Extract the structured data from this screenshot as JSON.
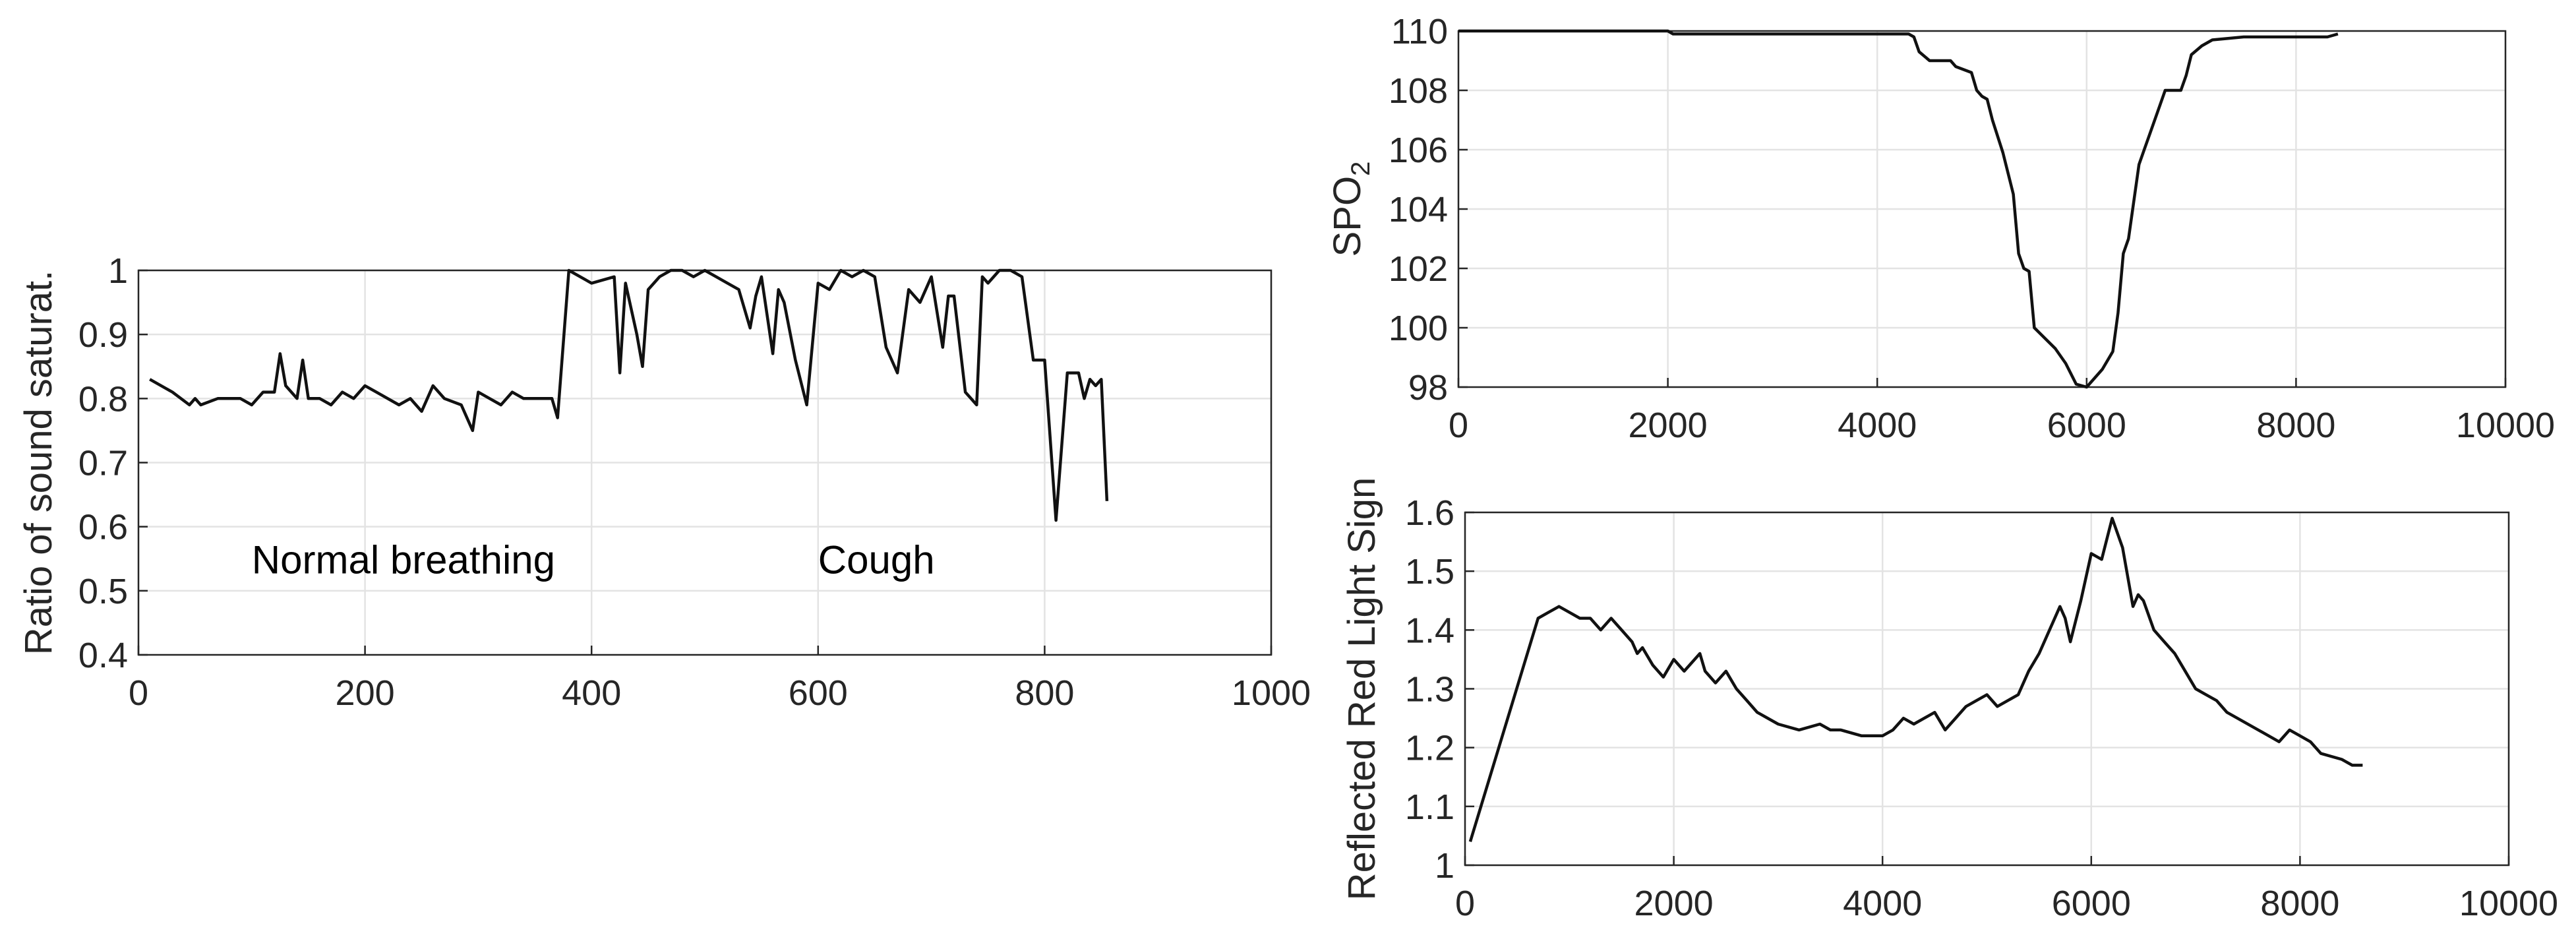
{
  "chart_data": [
    {
      "id": "left",
      "type": "line",
      "title": "",
      "xlabel": "",
      "ylabel": "Ratio of sound saturat.",
      "xlim": [
        0,
        1000
      ],
      "ylim": [
        0.4,
        1
      ],
      "grid": true,
      "xticks": [
        "0",
        "200",
        "400",
        "600",
        "800",
        "1000"
      ],
      "yticks": [
        "0.4",
        "0.5",
        "0.6",
        "0.7",
        "0.8",
        "0.9",
        "1"
      ],
      "annotations": [
        {
          "text": "Normal breathing",
          "x": 100,
          "y": 0.55
        },
        {
          "text": "Cough",
          "x": 600,
          "y": 0.55
        }
      ],
      "series": [
        {
          "x": [
            10,
            30,
            45,
            50,
            55,
            70,
            90,
            100,
            110,
            120,
            125,
            130,
            140,
            145,
            150,
            160,
            170,
            180,
            190,
            200,
            210,
            230,
            240,
            250,
            260,
            270,
            285,
            295,
            300,
            310,
            320,
            330,
            340,
            350,
            360,
            365,
            370,
            380,
            400,
            420,
            425,
            430,
            440,
            445,
            450,
            460,
            470,
            480,
            490,
            500,
            510,
            520,
            530,
            540,
            545,
            550,
            560,
            565,
            570,
            580,
            590,
            600,
            610,
            620,
            630,
            640,
            650,
            660,
            670,
            680,
            690,
            700,
            710,
            715,
            720,
            730,
            735,
            740,
            745,
            750,
            760,
            770,
            780,
            790,
            800,
            810,
            820,
            830,
            835,
            840,
            845,
            850,
            855,
            860,
            865,
            870
          ],
          "y": [
            0.83,
            0.81,
            0.79,
            0.8,
            0.79,
            0.8,
            0.8,
            0.79,
            0.81,
            0.81,
            0.87,
            0.82,
            0.8,
            0.86,
            0.8,
            0.8,
            0.79,
            0.81,
            0.8,
            0.82,
            0.81,
            0.79,
            0.8,
            0.78,
            0.82,
            0.8,
            0.79,
            0.75,
            0.81,
            0.8,
            0.79,
            0.81,
            0.8,
            0.8,
            0.8,
            0.8,
            0.77,
            1.0,
            0.98,
            0.99,
            0.84,
            0.98,
            0.9,
            0.85,
            0.97,
            0.99,
            1.0,
            1.0,
            0.99,
            1.0,
            0.99,
            0.98,
            0.97,
            0.91,
            0.96,
            0.99,
            0.87,
            0.97,
            0.95,
            0.86,
            0.79,
            0.98,
            0.97,
            1.0,
            0.99,
            1.0,
            0.99,
            0.88,
            0.84,
            0.97,
            0.95,
            0.99,
            0.88,
            0.96,
            0.96,
            0.81,
            0.8,
            0.79,
            0.99,
            0.98,
            1.0,
            1.0,
            0.99,
            0.86,
            0.86,
            0.61,
            0.84,
            0.84,
            0.8,
            0.83,
            0.82,
            0.83,
            0.64,
            null,
            null,
            null
          ]
        }
      ]
    },
    {
      "id": "top-right",
      "type": "line",
      "title": "",
      "xlabel": "",
      "ylabel": "SPO",
      "ylabel_sub": "2",
      "xlim": [
        0,
        10000
      ],
      "ylim": [
        98,
        110
      ],
      "grid": true,
      "xticks": [
        "0",
        "2000",
        "4000",
        "6000",
        "8000",
        "10000"
      ],
      "yticks": [
        "98",
        "100",
        "102",
        "104",
        "106",
        "108",
        "110"
      ],
      "series": [
        {
          "x": [
            0,
            2000,
            2050,
            4000,
            4300,
            4350,
            4400,
            4500,
            4700,
            4750,
            4900,
            4950,
            5000,
            5050,
            5100,
            5200,
            5300,
            5350,
            5400,
            5450,
            5500,
            5700,
            5800,
            5900,
            6000,
            6150,
            6250,
            6300,
            6350,
            6400,
            6500,
            6550,
            6600,
            6700,
            6750,
            6900,
            6950,
            7000,
            7100,
            7200,
            7500,
            8000,
            8300,
            8400
          ],
          "y": [
            110,
            110,
            109.9,
            109.9,
            109.9,
            109.8,
            109.3,
            109,
            109,
            108.8,
            108.6,
            108,
            107.8,
            107.7,
            107,
            105.9,
            104.5,
            102.5,
            102,
            101.9,
            100,
            99.3,
            98.8,
            98.1,
            98,
            98.6,
            99.2,
            100.5,
            102.5,
            103,
            105.5,
            106,
            106.5,
            107.5,
            108,
            108,
            108.5,
            109.2,
            109.5,
            109.7,
            109.8,
            109.8,
            109.8,
            109.9
          ]
        }
      ]
    },
    {
      "id": "bottom-right",
      "type": "line",
      "title": "",
      "xlabel": "",
      "ylabel": "Reflected Red Light Sign",
      "xlim": [
        0,
        10000
      ],
      "ylim": [
        1,
        1.6
      ],
      "grid": true,
      "xticks": [
        "0",
        "2000",
        "4000",
        "6000",
        "8000",
        "10000"
      ],
      "yticks": [
        "1",
        "1.1",
        "1.2",
        "1.3",
        "1.4",
        "1.5",
        "1.6"
      ],
      "series": [
        {
          "x": [
            50,
            700,
            800,
            900,
            1000,
            1100,
            1200,
            1300,
            1400,
            1500,
            1600,
            1650,
            1700,
            1800,
            1900,
            2000,
            2100,
            2200,
            2250,
            2300,
            2400,
            2500,
            2600,
            2700,
            2800,
            2900,
            3000,
            3200,
            3400,
            3500,
            3600,
            3800,
            4000,
            4100,
            4200,
            4300,
            4400,
            4500,
            4600,
            4700,
            4800,
            4900,
            5000,
            5100,
            5300,
            5400,
            5500,
            5600,
            5700,
            5750,
            5800,
            5900,
            6000,
            6100,
            6200,
            6300,
            6400,
            6450,
            6500,
            6600,
            6700,
            6800,
            6900,
            7000,
            7100,
            7200,
            7300,
            7400,
            7600,
            7700,
            7800,
            7900,
            8000,
            8100,
            8200,
            8400,
            8500,
            8600
          ],
          "y": [
            1.04,
            1.42,
            1.43,
            1.44,
            1.43,
            1.42,
            1.42,
            1.4,
            1.42,
            1.4,
            1.38,
            1.36,
            1.37,
            1.34,
            1.32,
            1.35,
            1.33,
            1.35,
            1.36,
            1.33,
            1.31,
            1.33,
            1.3,
            1.28,
            1.26,
            1.25,
            1.24,
            1.23,
            1.24,
            1.23,
            1.23,
            1.22,
            1.22,
            1.23,
            1.25,
            1.24,
            1.25,
            1.26,
            1.23,
            1.25,
            1.27,
            1.28,
            1.29,
            1.27,
            1.29,
            1.33,
            1.36,
            1.4,
            1.44,
            1.42,
            1.38,
            1.45,
            1.53,
            1.52,
            1.59,
            1.54,
            1.44,
            1.46,
            1.45,
            1.4,
            1.38,
            1.36,
            1.33,
            1.3,
            1.29,
            1.28,
            1.26,
            1.25,
            1.23,
            1.22,
            1.21,
            1.23,
            1.22,
            1.21,
            1.19,
            1.18,
            1.17,
            1.17
          ]
        }
      ]
    }
  ]
}
